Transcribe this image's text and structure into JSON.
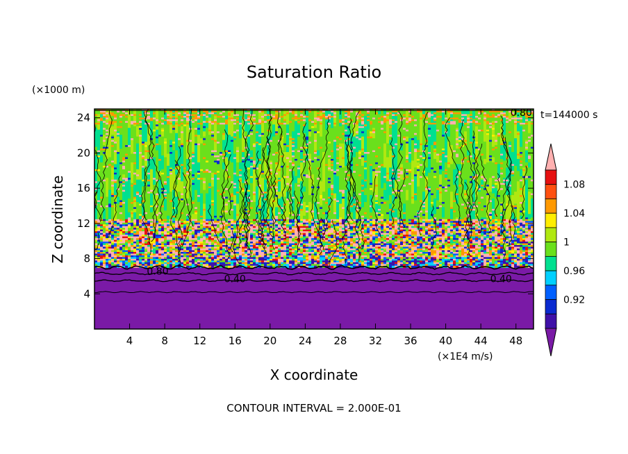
{
  "chart_data": {
    "type": "heatmap",
    "title": "Saturation Ratio",
    "xlabel": "X coordinate",
    "ylabel": "Z coordinate",
    "x_units": "(×1E4 m/s)",
    "y_units": "(×1000 m)",
    "time_label": "t=144000 s",
    "footer": "CONTOUR INTERVAL = 2.000E-01",
    "xlim": [
      0,
      50
    ],
    "ylim": [
      0,
      25
    ],
    "x_ticks": [
      4,
      8,
      12,
      16,
      20,
      24,
      28,
      32,
      36,
      40,
      44,
      48
    ],
    "y_ticks": [
      4,
      8,
      12,
      16,
      20,
      24
    ],
    "contour_labels": [
      {
        "text": "0.80",
        "x": 7.2,
        "y": 6.6
      },
      {
        "text": "0.40",
        "x": 16.0,
        "y": 5.7
      },
      {
        "text": "0.40",
        "x": 46.3,
        "y": 5.7
      },
      {
        "text": "0.80",
        "x": 48.6,
        "y": 24.6
      }
    ],
    "colorbar": {
      "levels": [
        0.88,
        0.9,
        0.92,
        0.94,
        0.96,
        0.98,
        1.0,
        1.02,
        1.04,
        1.06,
        1.08,
        1.1
      ],
      "labels": [
        "0.92",
        "0.96",
        "1",
        "1.04",
        "1.08"
      ],
      "label_values": [
        0.92,
        0.96,
        1.0,
        1.04,
        1.08
      ],
      "colors": [
        "#7a1aa6",
        "#3f10a8",
        "#0a2ad0",
        "#0060ff",
        "#00d0ff",
        "#00e090",
        "#6ae01c",
        "#b0e810",
        "#ffee00",
        "#ff9900",
        "#ff5010",
        "#e61010",
        "#ffb0b0"
      ]
    },
    "layers": [
      {
        "zmin": 0,
        "zmax": 7.0,
        "value": "below 0.88"
      },
      {
        "zmin": 7.0,
        "zmax": 12.5,
        "value": "mixed 0.90-1.10"
      },
      {
        "zmin": 12.5,
        "zmax": 25,
        "value": "0.98-1.02"
      }
    ]
  }
}
